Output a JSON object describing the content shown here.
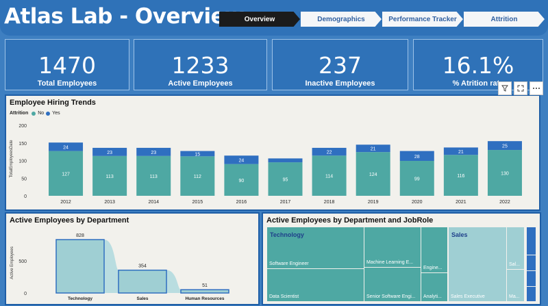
{
  "header": {
    "title": "Atlas Lab - Overview",
    "nav": [
      {
        "label": "Overview",
        "active": true
      },
      {
        "label": "Demographics",
        "active": false
      },
      {
        "label": "Performance Tracker",
        "active": false
      },
      {
        "label": "Attrition",
        "active": false
      }
    ]
  },
  "kpis": [
    {
      "value": "1470",
      "label": "Total Employees"
    },
    {
      "value": "1233",
      "label": "Active Employees"
    },
    {
      "value": "237",
      "label": "Inactive Employees"
    },
    {
      "value": "16.1%",
      "label": "% Atrition rate"
    }
  ],
  "toolbar": {
    "filter_icon": "filter-icon",
    "focus_icon": "focus-mode-icon",
    "more_icon": "more-options-icon"
  },
  "hiring": {
    "title": "Employee Hiring Trends",
    "legend_title": "Attrition",
    "chart_data": {
      "type": "bar",
      "stacked": true,
      "categories": [
        "2012",
        "2013",
        "2014",
        "2015",
        "2016",
        "2017",
        "2018",
        "2019",
        "2020",
        "2021",
        "2022"
      ],
      "series": [
        {
          "name": "No",
          "color": "#4ea8a3",
          "values": [
            127,
            113,
            113,
            112,
            90,
            95,
            114,
            124,
            99,
            116,
            130
          ]
        },
        {
          "name": "Yes",
          "color": "#2f6fc0",
          "values": [
            24,
            23,
            23,
            15,
            24,
            11,
            22,
            21,
            28,
            21,
            25
          ]
        }
      ],
      "ylabel": "TotalEmployeesDate",
      "ylim": [
        0,
        200
      ],
      "yticks": [
        0,
        50,
        100,
        150,
        200
      ]
    }
  },
  "dept": {
    "title": "Active Employees by Department",
    "chart_data": {
      "type": "bar",
      "categories": [
        "Technology",
        "Sales",
        "Human Resources"
      ],
      "values": [
        828,
        354,
        51
      ],
      "ylabel": "Active Employees",
      "ylim": [
        0,
        900
      ],
      "yticks": [
        0,
        500
      ]
    }
  },
  "treemap": {
    "title": "Active Employees by Department and JobRole",
    "groups": [
      {
        "label": "Technology"
      },
      {
        "label": "Sales"
      }
    ],
    "cells": [
      "Software Engineer",
      "Data Scientist",
      "Machine Learning E...",
      "Senior Software Engi...",
      "Engine...",
      "Analyti...",
      "Sales Executive",
      "Sal...",
      "Ma..."
    ]
  },
  "colors": {
    "teal": "#4ea8a3",
    "teal_light": "#9fcfd3",
    "blue": "#2f6fc0",
    "panel_border": "#1e5ea6"
  }
}
